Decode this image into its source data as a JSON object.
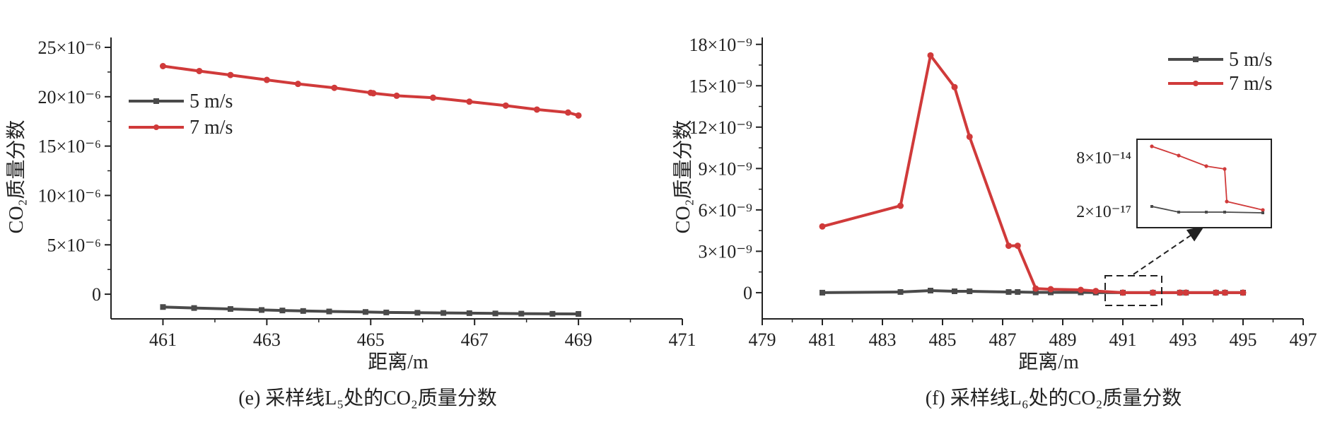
{
  "chart_data": [
    {
      "type": "line",
      "panel": "e",
      "caption": "(e) 采样线L₅处的CO₂质量分数",
      "xlabel": "距离/m",
      "ylabel": "CO₂质量分数",
      "xlim": [
        460,
        471
      ],
      "ylim": [
        -2.5e-06,
        2.6e-05
      ],
      "xticks": [
        461,
        463,
        465,
        467,
        469,
        471
      ],
      "xtick_labels": [
        "461",
        "463",
        "465",
        "467",
        "469",
        "471"
      ],
      "yticks": [
        0,
        5e-06,
        1e-05,
        1.5e-05,
        2e-05,
        2.5e-05
      ],
      "ytick_labels": [
        "0",
        "5×10⁻⁶",
        "10×10⁻⁶",
        "15×10⁻⁶",
        "20×10⁻⁶",
        "25×10⁻⁶"
      ],
      "legend_position": "upper-left",
      "series": [
        {
          "name": "5 m/s",
          "color": "#4a4a4a",
          "marker": "square",
          "x": [
            461,
            461.6,
            462.3,
            462.9,
            463.3,
            463.7,
            464.2,
            464.9,
            465.3,
            465.9,
            466.4,
            466.9,
            467.4,
            467.9,
            468.5,
            469
          ],
          "y": [
            -1.3e-06,
            -1.4e-06,
            -1.5e-06,
            -1.6e-06,
            -1.65e-06,
            -1.7e-06,
            -1.75e-06,
            -1.8e-06,
            -1.85e-06,
            -1.88e-06,
            -1.9e-06,
            -1.92e-06,
            -1.95e-06,
            -1.97e-06,
            -1.99e-06,
            -2e-06
          ]
        },
        {
          "name": "7 m/s",
          "color": "#d03a3a",
          "marker": "circle",
          "x": [
            461,
            461.7,
            462.3,
            463,
            463.6,
            464.3,
            465,
            465.05,
            465.5,
            466.2,
            466.9,
            467.6,
            468.2,
            468.8,
            469
          ],
          "y": [
            2.31e-05,
            2.26e-05,
            2.22e-05,
            2.17e-05,
            2.13e-05,
            2.09e-05,
            2.04e-05,
            2.035e-05,
            2.01e-05,
            1.99e-05,
            1.95e-05,
            1.91e-05,
            1.87e-05,
            1.84e-05,
            1.81e-05
          ]
        }
      ]
    },
    {
      "type": "line",
      "panel": "f",
      "caption": "(f) 采样线L₆处的CO₂质量分数",
      "xlabel": "距离/m",
      "ylabel": "CO₂质量分数",
      "xlim": [
        479,
        497
      ],
      "ylim": [
        -1.9e-09,
        1.85e-08
      ],
      "xticks": [
        479,
        481,
        483,
        485,
        487,
        489,
        491,
        493,
        495,
        497
      ],
      "xtick_labels": [
        "479",
        "481",
        "483",
        "485",
        "487",
        "489",
        "491",
        "493",
        "495",
        "497"
      ],
      "yticks": [
        0,
        3e-09,
        6e-09,
        9e-09,
        1.2e-08,
        1.5e-08,
        1.8e-08
      ],
      "ytick_labels": [
        "0",
        "3×10⁻⁹",
        "6×10⁻⁹",
        "9×10⁻⁹",
        "12×10⁻⁹",
        "15×10⁻⁹",
        "18×10⁻⁹"
      ],
      "legend_position": "upper-right",
      "series": [
        {
          "name": "5 m/s",
          "color": "#4a4a4a",
          "marker": "square",
          "x": [
            481,
            483.6,
            484.6,
            485.4,
            485.9,
            487.2,
            487.5,
            488.1,
            488.6,
            489.6,
            490.1,
            491,
            492,
            492.9,
            493.1,
            494.1,
            494.4,
            495
          ],
          "y": [
            0.0,
            5e-11,
            1.5e-10,
            1e-10,
            1e-10,
            5e-11,
            5e-11,
            2e-11,
            2e-11,
            2e-11,
            1e-11,
            0.0,
            0.0,
            0.0,
            0.0,
            0.0,
            0.0,
            0.0
          ]
        },
        {
          "name": "7 m/s",
          "color": "#d03a3a",
          "marker": "circle",
          "x": [
            481,
            483.6,
            484.6,
            485.4,
            485.9,
            487.2,
            487.5,
            488.1,
            488.6,
            489.6,
            490.1,
            491,
            492,
            492.9,
            493.1,
            494.1,
            494.4,
            495
          ],
          "y": [
            4.8e-09,
            6.3e-09,
            1.72e-08,
            1.49e-08,
            1.13e-08,
            3.4e-09,
            3.4e-09,
            3e-10,
            2.5e-10,
            2e-10,
            1.2e-10,
            0.0,
            0.0,
            0.0,
            0.0,
            0.0,
            0.0,
            0.0
          ]
        }
      ],
      "inset": {
        "ytick_labels": [
          "8×10⁻¹⁴",
          "2×10⁻¹⁷"
        ],
        "highlighted_x_range": [
          490.1,
          492.2
        ]
      }
    }
  ]
}
